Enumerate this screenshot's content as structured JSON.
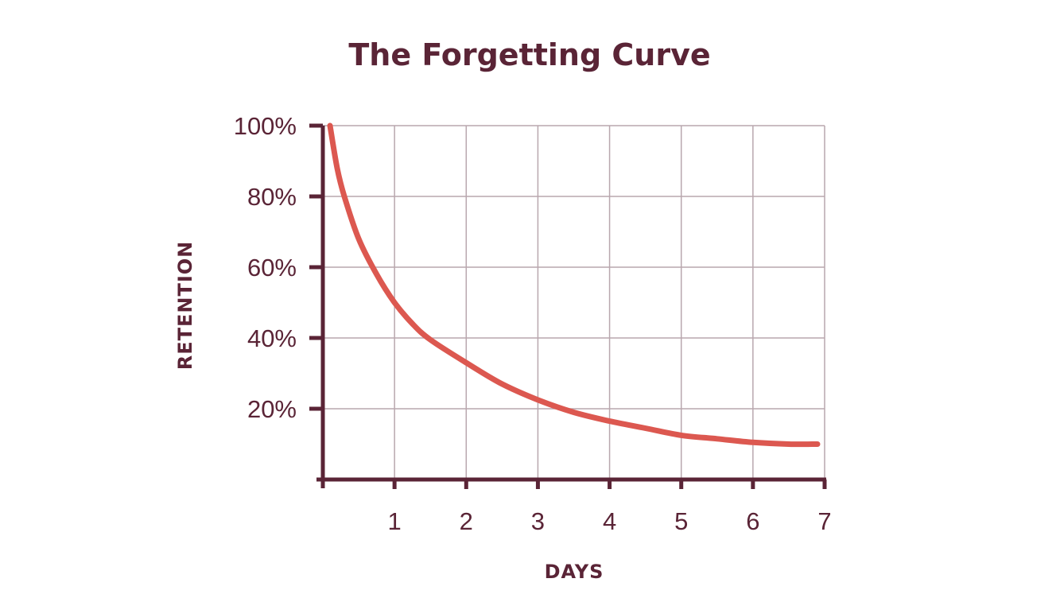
{
  "chart_data": {
    "type": "line",
    "title": "The Forgetting Curve",
    "xlabel": "DAYS",
    "ylabel": "RETENTION",
    "xlim": [
      0,
      7
    ],
    "ylim": [
      0,
      100
    ],
    "x_ticks": [
      1,
      2,
      3,
      4,
      5,
      6,
      7
    ],
    "y_ticks": [
      20,
      40,
      60,
      80,
      100
    ],
    "y_tick_labels": [
      "20%",
      "40%",
      "60%",
      "80%",
      "100%"
    ],
    "grid": true,
    "series": [
      {
        "x": [
          0.1,
          0.2,
          0.3,
          0.5,
          0.75,
          1,
          1.25,
          1.5,
          2,
          2.5,
          3,
          3.5,
          4,
          4.5,
          5,
          5.5,
          6,
          6.5,
          6.9
        ],
        "values": [
          100,
          88,
          80,
          68,
          58,
          50,
          44,
          39.5,
          33,
          27,
          22.5,
          19,
          16.5,
          14.5,
          12.5,
          11.5,
          10.5,
          10,
          10
        ]
      }
    ],
    "colors": {
      "text": "#5a2436",
      "axis": "#5a2436",
      "grid": "#b9a7ae",
      "curve": "#dc5850"
    }
  }
}
